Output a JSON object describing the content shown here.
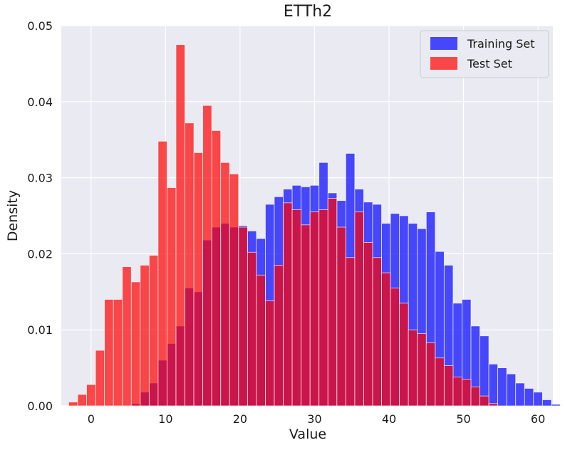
{
  "chart_data": {
    "type": "bar",
    "title": "ETTh2",
    "xlabel": "Value",
    "ylabel": "Density",
    "xlim": [
      -4,
      62
    ],
    "ylim": [
      0,
      0.05
    ],
    "xticks": [
      0,
      10,
      20,
      30,
      40,
      50,
      60
    ],
    "yticks": [
      0,
      0.01,
      0.02,
      0.03,
      0.04,
      0.05
    ],
    "ytick_labels": [
      "0.00",
      "0.01",
      "0.02",
      "0.03",
      "0.04",
      "0.05"
    ],
    "grid": true,
    "legend_position": "top-right",
    "bin_start": -3,
    "bin_width": 1.2,
    "series": [
      {
        "name": "Training Set",
        "color": "#0000ff",
        "values": [
          0,
          0,
          0,
          0,
          0,
          0,
          0,
          0.0003,
          0.0018,
          0.003,
          0.006,
          0.0082,
          0.0105,
          0.0155,
          0.015,
          0.0218,
          0.0235,
          0.024,
          0.0235,
          0.0237,
          0.023,
          0.022,
          0.0265,
          0.0275,
          0.0285,
          0.029,
          0.0288,
          0.029,
          0.032,
          0.028,
          0.027,
          0.0332,
          0.0285,
          0.0268,
          0.0265,
          0.024,
          0.0253,
          0.025,
          0.024,
          0.0233,
          0.0255,
          0.0203,
          0.0185,
          0.0135,
          0.014,
          0.0105,
          0.0092,
          0.0055,
          0.005,
          0.0042,
          0.003,
          0.0023,
          0.0018,
          0.0008,
          0.0002
        ]
      },
      {
        "name": "Test Set",
        "color": "#ff0000",
        "values": [
          0.0005,
          0.0015,
          0.0028,
          0.0073,
          0.014,
          0.014,
          0.0183,
          0.0163,
          0.0185,
          0.0198,
          0.0348,
          0.0287,
          0.0475,
          0.0372,
          0.0333,
          0.0395,
          0.0362,
          0.032,
          0.0305,
          0.0235,
          0.0202,
          0.0172,
          0.0138,
          0.0185,
          0.0267,
          0.0258,
          0.0238,
          0.0255,
          0.0258,
          0.0273,
          0.0235,
          0.0195,
          0.0255,
          0.0215,
          0.0195,
          0.0175,
          0.0155,
          0.0135,
          0.01,
          0.0095,
          0.0083,
          0.0063,
          0.0053,
          0.0038,
          0.0035,
          0.0025,
          0.0013,
          0.0003,
          0,
          0,
          0,
          0,
          0,
          0,
          0
        ]
      }
    ]
  }
}
